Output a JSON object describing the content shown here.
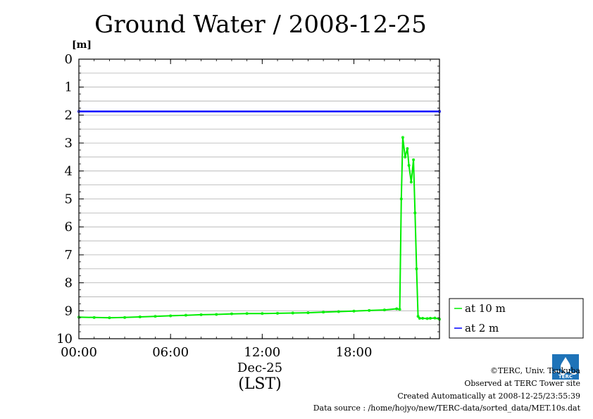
{
  "chart_data": {
    "type": "line",
    "title": "Ground Water / 2008-12-25",
    "ylabel": "[m]",
    "x_ticks": [
      "00:00",
      "06:00",
      "12:00",
      "18:00"
    ],
    "x_sublabel": "Dec-25",
    "x_unit": "(LST)",
    "xlim_hours": [
      0,
      23.6
    ],
    "ylim": [
      0,
      10
    ],
    "y_inverted": true,
    "y_ticks": [
      0,
      1,
      2,
      3,
      4,
      5,
      6,
      7,
      8,
      9,
      10
    ],
    "grid": true,
    "legend_position": "right-bottom",
    "series": [
      {
        "name": "at 10 m",
        "color": "#00ee00",
        "x_hours": [
          0,
          1,
          2,
          3,
          4,
          5,
          6,
          7,
          8,
          9,
          10,
          11,
          12,
          13,
          14,
          15,
          16,
          17,
          18,
          19,
          20,
          20.8,
          21.0,
          21.1,
          21.2,
          21.35,
          21.5,
          21.6,
          21.75,
          21.9,
          22.0,
          22.1,
          22.2,
          22.3,
          22.5,
          22.8,
          23.0,
          23.3,
          23.6
        ],
        "values": [
          9.23,
          9.24,
          9.25,
          9.24,
          9.22,
          9.2,
          9.18,
          9.16,
          9.14,
          9.13,
          9.11,
          9.1,
          9.1,
          9.09,
          9.08,
          9.07,
          9.05,
          9.03,
          9.01,
          8.99,
          8.97,
          8.93,
          8.95,
          5.0,
          2.8,
          3.5,
          3.2,
          3.8,
          4.4,
          3.6,
          5.5,
          7.5,
          9.2,
          9.27,
          9.27,
          9.28,
          9.27,
          9.26,
          9.3
        ]
      },
      {
        "name": "at 2 m",
        "color": "#0000ff",
        "x_hours": [
          0,
          23.6
        ],
        "values": [
          1.87,
          1.87
        ]
      }
    ]
  },
  "footer": {
    "copyright": "©TERC, Univ. Tsukuba",
    "observed": "Observed at TERC Tower site",
    "created": "Created Automatically at 2008-12-25/23:55:39",
    "source": "Data source : /home/hojyo/new/TERC-data/sorted_data/MET.10s.dat"
  }
}
